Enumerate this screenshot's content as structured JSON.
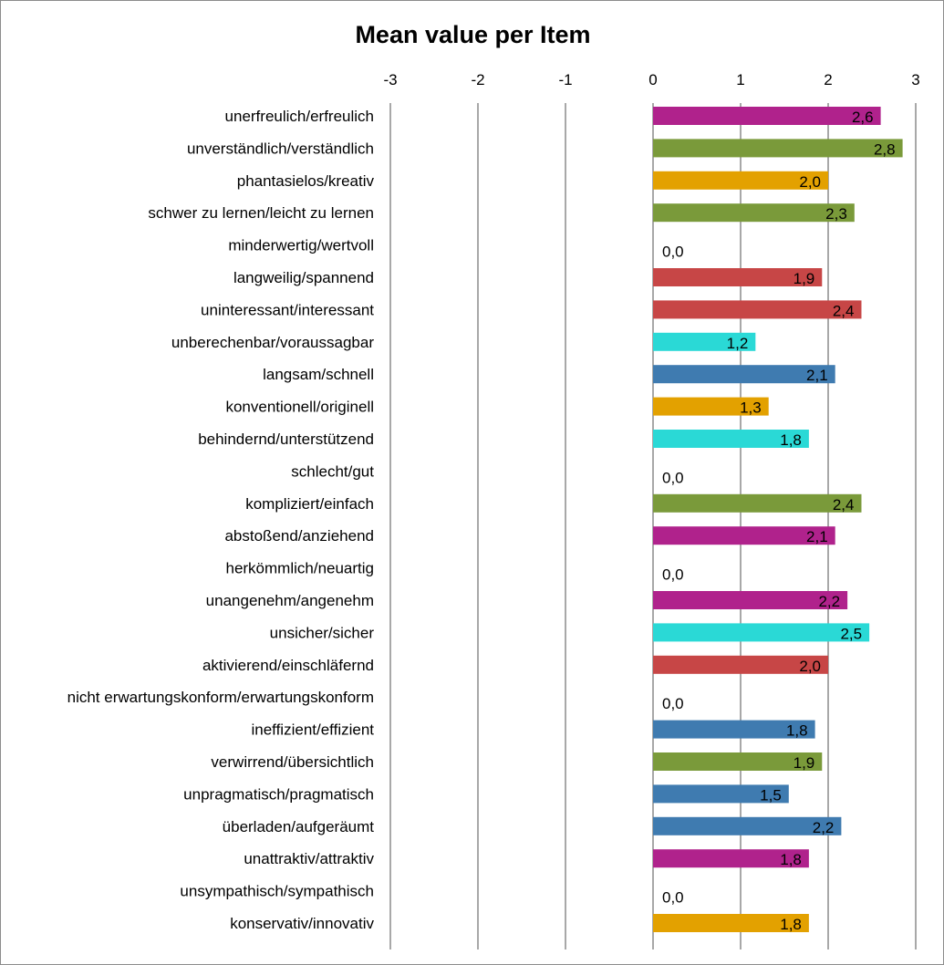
{
  "chart_data": {
    "type": "bar",
    "orientation": "horizontal",
    "title": "Mean value per Item",
    "xlim": [
      -3,
      3
    ],
    "x_ticks": [
      "-3",
      "-2",
      "-1",
      "0",
      "1",
      "2",
      "3"
    ],
    "grid": "vertical gridlines",
    "legend": "none",
    "categories": [
      "unerfreulich/erfreulich",
      "unverständlich/verständlich",
      "phantasielos/kreativ",
      "schwer zu lernen/leicht zu lernen",
      "minderwertig/wertvoll",
      "langweilig/spannend",
      "uninteressant/interessant",
      "unberechenbar/voraussagbar",
      "langsam/schnell",
      "konventionell/originell",
      "behindernd/unterstützend",
      "schlecht/gut",
      "kompliziert/einfach",
      "abstoßend/anziehend",
      "herkömmlich/neuartig",
      "unangenehm/angenehm",
      "unsicher/sicher",
      "aktivierend/einschläfernd",
      "nicht erwartungskonform/erwartungskonform",
      "ineffizient/effizient",
      "verwirrend/übersichtlich",
      "unpragmatisch/pragmatisch",
      "überladen/aufgeräumt",
      "unattraktiv/attraktiv",
      "unsympathisch/sympathisch",
      "konservativ/innovativ"
    ],
    "values": [
      2.6,
      2.85,
      2.0,
      2.3,
      0.0,
      1.93,
      2.38,
      1.17,
      2.08,
      1.32,
      1.78,
      0.0,
      2.38,
      2.08,
      0.0,
      2.22,
      2.47,
      2.0,
      0.0,
      1.85,
      1.93,
      1.55,
      2.15,
      1.78,
      0.0,
      1.78
    ],
    "labels": [
      "2,6",
      "2,8",
      "2,0",
      "2,3",
      "0,0",
      "1,9",
      "2,4",
      "1,2",
      "2,1",
      "1,3",
      "1,8",
      "0,0",
      "2,4",
      "2,1",
      "0,0",
      "2,2",
      "2,5",
      "2,0",
      "0,0",
      "1,8",
      "1,9",
      "1,5",
      "2,2",
      "1,8",
      "0,0",
      "1,8"
    ],
    "colors": [
      "#B0228C",
      "#7A9A3A",
      "#E3A100",
      "#7A9A3A",
      "#B0228C",
      "#C74646",
      "#C74646",
      "#2AD9D6",
      "#3F7BB0",
      "#E3A100",
      "#2AD9D6",
      "#2AD9D6",
      "#7A9A3A",
      "#B0228C",
      "#E3A100",
      "#B0228C",
      "#2AD9D6",
      "#C74646",
      "#2AD9D6",
      "#3F7BB0",
      "#7A9A3A",
      "#3F7BB0",
      "#3F7BB0",
      "#B0228C",
      "#B0228C",
      "#E3A100"
    ]
  },
  "style": {
    "gridline_color": "#8c8c8c"
  }
}
